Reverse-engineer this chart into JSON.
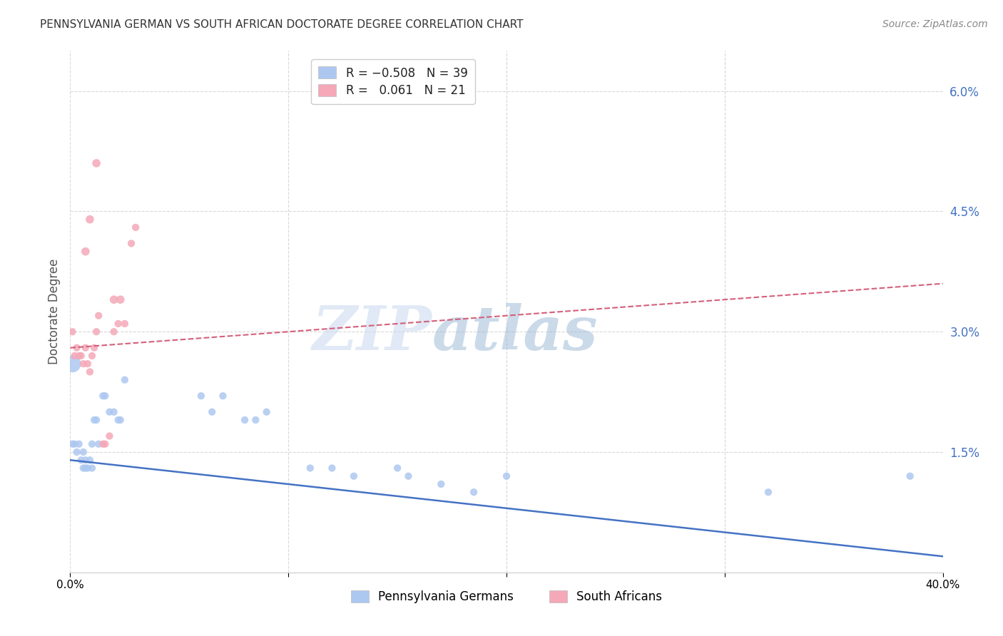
{
  "title": "PENNSYLVANIA GERMAN VS SOUTH AFRICAN DOCTORATE DEGREE CORRELATION CHART",
  "source": "Source: ZipAtlas.com",
  "ylabel": "Doctorate Degree",
  "x_min": 0.0,
  "x_max": 0.4,
  "y_min": 0.0,
  "y_max": 0.065,
  "x_ticks": [
    0.0,
    0.1,
    0.2,
    0.3,
    0.4
  ],
  "x_tick_labels": [
    "0.0%",
    "",
    "",
    "",
    "40.0%"
  ],
  "y_ticks_right": [
    0.0,
    0.015,
    0.03,
    0.045,
    0.06
  ],
  "y_tick_labels_right": [
    "",
    "1.5%",
    "3.0%",
    "4.5%",
    "6.0%"
  ],
  "blue_line_color": "#4472c4",
  "pink_line_color": "#d4607a",
  "blue_scatter_color": "#adc8f0",
  "pink_scatter_color": "#f4a8b8",
  "blue_line_x0": 0.0,
  "blue_line_y0": 0.014,
  "blue_line_x1": 0.4,
  "blue_line_y1": 0.002,
  "pink_line_x0": 0.0,
  "pink_line_y0": 0.028,
  "pink_line_x1": 0.4,
  "pink_line_y1": 0.036,
  "blue_points": [
    [
      0.001,
      0.016
    ],
    [
      0.002,
      0.016
    ],
    [
      0.003,
      0.015
    ],
    [
      0.004,
      0.016
    ],
    [
      0.005,
      0.014
    ],
    [
      0.006,
      0.013
    ],
    [
      0.006,
      0.015
    ],
    [
      0.007,
      0.014
    ],
    [
      0.007,
      0.013
    ],
    [
      0.008,
      0.013
    ],
    [
      0.009,
      0.014
    ],
    [
      0.01,
      0.013
    ],
    [
      0.01,
      0.016
    ],
    [
      0.011,
      0.019
    ],
    [
      0.012,
      0.019
    ],
    [
      0.013,
      0.016
    ],
    [
      0.015,
      0.022
    ],
    [
      0.016,
      0.022
    ],
    [
      0.018,
      0.02
    ],
    [
      0.02,
      0.02
    ],
    [
      0.022,
      0.019
    ],
    [
      0.023,
      0.019
    ],
    [
      0.025,
      0.024
    ],
    [
      0.06,
      0.022
    ],
    [
      0.065,
      0.02
    ],
    [
      0.07,
      0.022
    ],
    [
      0.08,
      0.019
    ],
    [
      0.085,
      0.019
    ],
    [
      0.09,
      0.02
    ],
    [
      0.11,
      0.013
    ],
    [
      0.12,
      0.013
    ],
    [
      0.13,
      0.012
    ],
    [
      0.15,
      0.013
    ],
    [
      0.155,
      0.012
    ],
    [
      0.17,
      0.011
    ],
    [
      0.185,
      0.01
    ],
    [
      0.2,
      0.012
    ],
    [
      0.32,
      0.01
    ],
    [
      0.385,
      0.012
    ]
  ],
  "blue_large_point": [
    0.001,
    0.026,
    300
  ],
  "pink_points": [
    [
      0.001,
      0.03
    ],
    [
      0.002,
      0.027
    ],
    [
      0.003,
      0.028
    ],
    [
      0.004,
      0.027
    ],
    [
      0.005,
      0.027
    ],
    [
      0.006,
      0.026
    ],
    [
      0.007,
      0.028
    ],
    [
      0.008,
      0.026
    ],
    [
      0.009,
      0.025
    ],
    [
      0.01,
      0.027
    ],
    [
      0.011,
      0.028
    ],
    [
      0.012,
      0.03
    ],
    [
      0.013,
      0.032
    ],
    [
      0.015,
      0.016
    ],
    [
      0.016,
      0.016
    ],
    [
      0.018,
      0.017
    ],
    [
      0.02,
      0.03
    ],
    [
      0.022,
      0.031
    ],
    [
      0.025,
      0.031
    ],
    [
      0.028,
      0.041
    ],
    [
      0.03,
      0.043
    ]
  ],
  "pink_outlier1": [
    0.012,
    0.051
  ],
  "pink_outlier2": [
    0.009,
    0.044
  ],
  "pink_outlier3": [
    0.007,
    0.04
  ],
  "pink_outlier4": [
    0.02,
    0.034
  ],
  "pink_outlier5": [
    0.023,
    0.034
  ],
  "watermark_zip": "ZIP",
  "watermark_atlas": "atlas",
  "background_color": "#ffffff",
  "grid_color": "#d8d8d8",
  "title_color": "#333333",
  "axis_color": "#4472c4"
}
